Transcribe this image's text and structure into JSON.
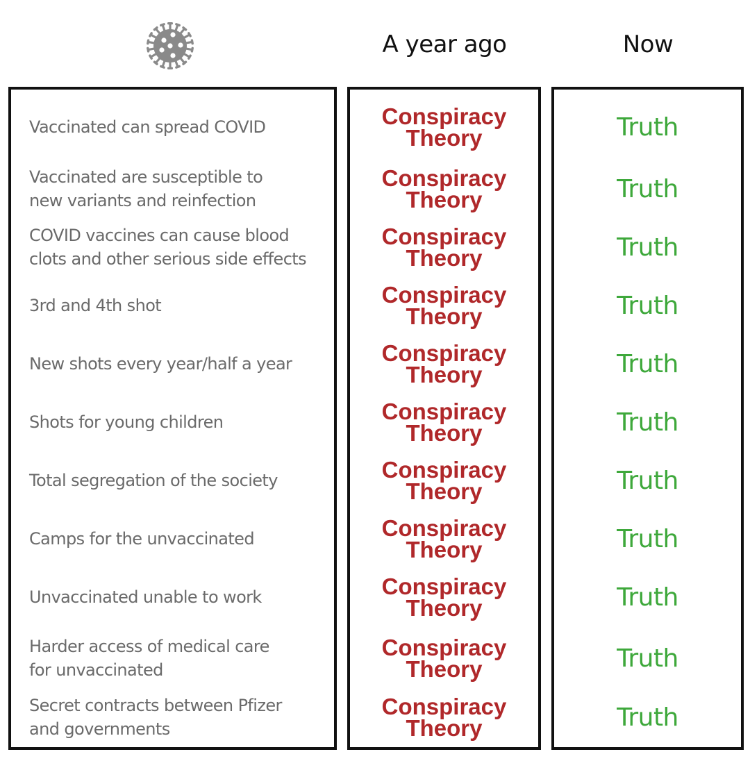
{
  "header": {
    "icon": "virus-icon",
    "columns": [
      {
        "id": "ago",
        "title": "A year ago"
      },
      {
        "id": "now",
        "title": "Now"
      }
    ]
  },
  "colors": {
    "ago_text": "#b0282a",
    "now_text": "#3ea83b",
    "claim_text": "#6a6a6a",
    "border": "#111111",
    "icon": "#8a8a8a"
  },
  "rows": [
    {
      "claim": [
        "Vaccinated can spread COVID"
      ],
      "ago": [
        "Conspiracy",
        "Theory"
      ],
      "now": "Truth"
    },
    {
      "claim": [
        "Vaccinated are susceptible to",
        "new variants and reinfection"
      ],
      "ago": [
        "Conspiracy",
        "Theory"
      ],
      "now": "Truth"
    },
    {
      "claim": [
        "COVID vaccines can cause blood",
        "clots and other serious side effects"
      ],
      "ago": [
        "Conspiracy",
        "Theory"
      ],
      "now": "Truth"
    },
    {
      "claim": [
        "3rd and 4th shot"
      ],
      "ago": [
        "Conspiracy",
        "Theory"
      ],
      "now": "Truth"
    },
    {
      "claim": [
        "New shots every year/half a year"
      ],
      "ago": [
        "Conspiracy",
        "Theory"
      ],
      "now": "Truth"
    },
    {
      "claim": [
        "Shots for young children"
      ],
      "ago": [
        "Conspiracy",
        "Theory"
      ],
      "now": "Truth"
    },
    {
      "claim": [
        "Total segregation of the society"
      ],
      "ago": [
        "Conspiracy",
        "Theory"
      ],
      "now": "Truth"
    },
    {
      "claim": [
        "Camps for the unvaccinated"
      ],
      "ago": [
        "Conspiracy",
        "Theory"
      ],
      "now": "Truth"
    },
    {
      "claim": [
        "Unvaccinated unable to work"
      ],
      "ago": [
        "Conspiracy",
        "Theory"
      ],
      "now": "Truth"
    },
    {
      "claim": [
        "Harder access of medical care",
        "for unvaccinated"
      ],
      "ago": [
        "Conspiracy",
        "Theory"
      ],
      "now": "Truth"
    },
    {
      "claim": [
        "Secret contracts between Pfizer",
        "and governments"
      ],
      "ago": [
        "Conspiracy",
        "Theory"
      ],
      "now": "Truth"
    }
  ]
}
